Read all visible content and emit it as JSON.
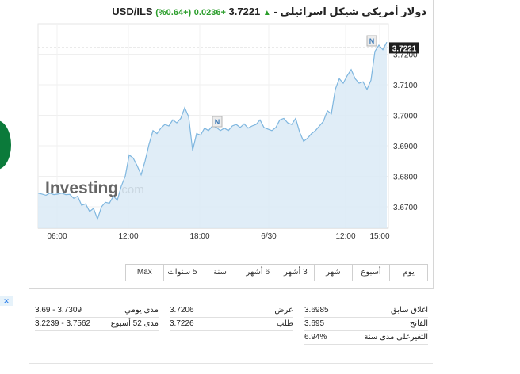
{
  "header": {
    "pair": "USD/ILS",
    "name": "دولار أمريكي شيكل اسرائيلي -",
    "price": "3.7221",
    "change": "+0.0236",
    "change_pct": "(+0.64%)",
    "up_color": "#2a9d2a"
  },
  "ad": {
    "close_label": "✕"
  },
  "chart_data": {
    "type": "area",
    "title": "",
    "xlabel": "",
    "ylabel": "",
    "ylim": [
      3.663,
      3.73
    ],
    "yticks": [
      "3.6700",
      "3.6800",
      "3.6900",
      "3.7000",
      "3.7100",
      "3.7200"
    ],
    "xticks": [
      "06:00",
      "12:00",
      "18:00",
      "6/30",
      "12:00",
      "15:00"
    ],
    "current_value": 3.7221,
    "current_label": "3.7221",
    "watermark_brand": "Investing",
    "watermark_suffix": ".com",
    "news_markers": [
      "N",
      "N"
    ],
    "line_color": "#7eb6df",
    "fill_color": "#dbeaf6",
    "series": [
      {
        "values": [
          3.6745,
          3.6742,
          3.6738,
          3.6745,
          3.674,
          3.6742,
          3.6745,
          3.674,
          3.6741,
          3.6728,
          3.6735,
          3.6705,
          3.671,
          3.6685,
          3.6695,
          3.666,
          3.67,
          3.6715,
          3.6712,
          3.6735,
          3.6722,
          3.6768,
          3.68,
          3.687,
          3.686,
          3.6835,
          3.6805,
          3.685,
          3.6905,
          3.695,
          3.694,
          3.6958,
          3.697,
          3.6965,
          3.6985,
          3.6975,
          3.699,
          3.7025,
          3.6995,
          3.6885,
          3.694,
          3.6935,
          3.6958,
          3.695,
          3.6965,
          3.696,
          3.695,
          3.6958,
          3.695,
          3.6965,
          3.697,
          3.696,
          3.6972,
          3.6958,
          3.6965,
          3.697,
          3.6985,
          3.696,
          3.6955,
          3.695,
          3.696,
          3.6985,
          3.699,
          3.6975,
          3.697,
          3.699,
          3.6945,
          3.6915,
          3.6925,
          3.694,
          3.695,
          3.6965,
          3.698,
          3.7015,
          3.7005,
          3.7085,
          3.712,
          3.7105,
          3.713,
          3.715,
          3.712,
          3.7105,
          3.711,
          3.7085,
          3.7115,
          3.721,
          3.723,
          3.7215,
          3.724
        ]
      }
    ],
    "grid": true,
    "legend": "none"
  },
  "range_buttons": [
    "يوم",
    "أسبوع",
    "شهر",
    "3 أشهر",
    "6 أشهر",
    "سنة",
    "5 سنوات",
    "Max"
  ],
  "stats": {
    "prev_close_label": "اغلاق سابق",
    "prev_close": "3.6985",
    "open_label": "الفاتح",
    "open": "3.695",
    "ytd_label": "التغيرعلى مدى سنة",
    "ytd": "6.94%",
    "bid_label": "عرض",
    "bid": "3.7206",
    "ask_label": "طلب",
    "ask": "3.7226",
    "day_range_label": "مدى يومي",
    "day_range": "3.69 - 3.7309",
    "week52_label": "مدى 52 أسبوع",
    "week52": "3.2239 - 3.7562"
  }
}
